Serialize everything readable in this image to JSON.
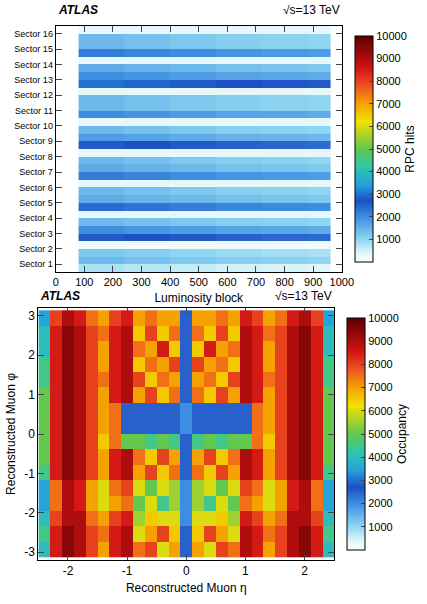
{
  "chart_data": [
    {
      "type": "heatmap",
      "annotations": [
        "ATLAS",
        "√s=13 TeV"
      ],
      "x_label": "Luminosity block",
      "colorbar_label": "RPC hits",
      "grid": false,
      "xlim": [
        0,
        1000
      ],
      "xticks": [
        0,
        100,
        200,
        300,
        400,
        500,
        600,
        700,
        800,
        900,
        1000
      ],
      "ylim": [
        0,
        16
      ],
      "yticks": [
        {
          "value": 0.5,
          "label": "Sector 1"
        },
        {
          "value": 1.5,
          "label": "Sector 2"
        },
        {
          "value": 2.5,
          "label": "Sector 3"
        },
        {
          "value": 3.5,
          "label": "Sector 4"
        },
        {
          "value": 4.5,
          "label": "Sector 5"
        },
        {
          "value": 5.5,
          "label": "Sector 6"
        },
        {
          "value": 6.5,
          "label": "Sector 7"
        },
        {
          "value": 7.5,
          "label": "Sector 8"
        },
        {
          "value": 8.5,
          "label": "Sector 9"
        },
        {
          "value": 9.5,
          "label": "Sector 10"
        },
        {
          "value": 10.5,
          "label": "Sector 11"
        },
        {
          "value": 11.5,
          "label": "Sector 12"
        },
        {
          "value": 12.5,
          "label": "Sector 13"
        },
        {
          "value": 13.5,
          "label": "Sector 14"
        },
        {
          "value": 14.5,
          "label": "Sector 15"
        },
        {
          "value": 15.5,
          "label": "Sector 16"
        }
      ],
      "zlim": [
        0,
        10000
      ],
      "zticks": [
        1000,
        2000,
        3000,
        4000,
        5000,
        6000,
        7000,
        8000,
        9000,
        10000
      ],
      "x_bins": [
        80,
        160,
        240,
        320,
        400,
        480,
        560,
        640,
        720,
        800,
        880,
        960
      ],
      "y_bins": [
        0,
        0.5,
        1,
        1.5,
        2,
        2.5,
        3,
        3.5,
        4,
        4.5,
        5,
        5.5,
        6,
        6.5,
        7,
        7.5,
        8,
        8.5,
        9,
        9.5,
        10,
        10.5,
        11,
        11.5,
        12,
        12.5,
        13,
        13.5,
        14,
        14.5,
        15,
        15.5,
        16
      ],
      "cells": [
        [
          800,
          800,
          700,
          700,
          600,
          600,
          500,
          500,
          450,
          450,
          400
        ],
        [
          1400,
          1400,
          1300,
          1300,
          1200,
          1200,
          1100,
          1100,
          1050,
          1050,
          1000
        ],
        [
          1200,
          1200,
          1100,
          1100,
          1000,
          1000,
          900,
          900,
          850,
          850,
          800
        ],
        [
          200,
          200,
          200,
          200,
          200,
          200,
          200,
          200,
          200,
          200,
          200
        ],
        [
          2800,
          2800,
          2700,
          2700,
          2600,
          2600,
          2500,
          2500,
          2450,
          2450,
          2400
        ],
        [
          2000,
          2000,
          1900,
          1900,
          1800,
          1800,
          1700,
          1700,
          1650,
          1650,
          1600
        ],
        [
          1400,
          1400,
          1300,
          1300,
          1200,
          1200,
          1100,
          1100,
          1050,
          1050,
          1000
        ],
        [
          300,
          300,
          300,
          300,
          300,
          300,
          300,
          300,
          300,
          300,
          300
        ],
        [
          2400,
          2400,
          2300,
          2300,
          2200,
          2200,
          2100,
          2100,
          2050,
          2050,
          2000
        ],
        [
          1600,
          1600,
          1500,
          1500,
          1400,
          1400,
          1300,
          1300,
          1250,
          1250,
          1200
        ],
        [
          1400,
          1400,
          1300,
          1300,
          1200,
          1200,
          1100,
          1100,
          1050,
          1050,
          1000
        ],
        [
          300,
          300,
          300,
          300,
          300,
          300,
          300,
          300,
          300,
          300,
          300
        ],
        [
          2200,
          2200,
          2100,
          2100,
          2000,
          2000,
          1900,
          1900,
          1850,
          1850,
          1800
        ],
        [
          1600,
          1600,
          1500,
          1500,
          1400,
          1400,
          1300,
          1300,
          1250,
          1250,
          1200
        ],
        [
          1400,
          1400,
          1300,
          1300,
          1200,
          1200,
          1100,
          1100,
          1050,
          1050,
          1000
        ],
        [
          300,
          300,
          300,
          300,
          300,
          300,
          300,
          300,
          300,
          300,
          300
        ],
        [
          2800,
          2800,
          2700,
          2700,
          2600,
          2600,
          2500,
          2500,
          2450,
          2450,
          2400
        ],
        [
          1800,
          1800,
          1700,
          1700,
          1600,
          1600,
          1500,
          1500,
          1450,
          1450,
          1400
        ],
        [
          1400,
          1400,
          1300,
          1300,
          1200,
          1200,
          1100,
          1100,
          1050,
          1050,
          1000
        ],
        [
          300,
          300,
          300,
          300,
          300,
          300,
          300,
          300,
          300,
          300,
          300
        ],
        [
          2000,
          2000,
          1900,
          1900,
          1800,
          1800,
          1700,
          1700,
          1650,
          1650,
          1600
        ],
        [
          1400,
          1400,
          1300,
          1300,
          1200,
          1200,
          1100,
          1100,
          1050,
          1050,
          1000
        ],
        [
          1400,
          1400,
          1300,
          1300,
          1200,
          1200,
          1100,
          1100,
          1050,
          1050,
          1000
        ],
        [
          300,
          300,
          300,
          300,
          300,
          300,
          300,
          300,
          300,
          300,
          300
        ],
        [
          3000,
          3000,
          2900,
          2900,
          2800,
          2800,
          2700,
          2700,
          2650,
          2650,
          2600
        ],
        [
          2000,
          2000,
          1900,
          1900,
          1800,
          1800,
          1700,
          1700,
          1650,
          1650,
          1600
        ],
        [
          1600,
          1600,
          1500,
          1500,
          1400,
          1400,
          1300,
          1300,
          1250,
          1250,
          1200
        ],
        [
          300,
          300,
          300,
          300,
          300,
          300,
          300,
          300,
          300,
          300,
          300
        ],
        [
          2200,
          2200,
          2100,
          2100,
          2000,
          2000,
          1900,
          1900,
          1850,
          1850,
          1800
        ],
        [
          1400,
          1400,
          1300,
          1300,
          1200,
          1200,
          1100,
          1100,
          1050,
          1050,
          1000
        ],
        [
          1400,
          1400,
          1300,
          1300,
          1200,
          1200,
          1100,
          1100,
          1050,
          1050,
          1000
        ],
        [
          300,
          300,
          300,
          300,
          300,
          300,
          300,
          300,
          300,
          300,
          300
        ]
      ]
    },
    {
      "type": "heatmap",
      "annotations": [
        "ATLAS",
        "√s=13 TeV"
      ],
      "x_label": "Reconstructed Muon η",
      "y_label": "Reconstructed Muon φ",
      "colorbar_label": "Occupancy",
      "grid": false,
      "xlim": [
        -2.5,
        2.5
      ],
      "xticks": [
        -2,
        -1,
        0,
        1,
        2
      ],
      "ylim": [
        -3.2,
        3.2
      ],
      "yticks": [
        -3,
        -2,
        -1,
        0,
        1,
        2,
        3
      ],
      "zlim": [
        0,
        10000
      ],
      "zticks": [
        1000,
        2000,
        3000,
        4000,
        5000,
        6000,
        7000,
        8000,
        9000,
        10000
      ],
      "x_bins": [
        -2.5,
        -2.3,
        -2.1,
        -1.9,
        -1.7,
        -1.5,
        -1.3,
        -1.1,
        -0.9,
        -0.7,
        -0.5,
        -0.3,
        -0.1,
        0.1,
        0.3,
        0.5,
        0.7,
        0.9,
        1.1,
        1.3,
        1.5,
        1.7,
        1.9,
        2.1,
        2.3,
        2.5
      ],
      "y_bins": [
        -3.1416,
        -2.7489,
        -2.3562,
        -1.9635,
        -1.5708,
        -1.1781,
        -0.7854,
        -0.3927,
        0,
        0.3927,
        0.7854,
        1.1781,
        1.5708,
        1.9635,
        2.3562,
        2.7489,
        3.1416
      ],
      "cells": [
        [
          4000,
          8500,
          9500,
          9000,
          8000,
          7000,
          8500,
          9000,
          7500,
          8000,
          6000,
          7000,
          2500,
          7000,
          6000,
          8000,
          7500,
          9000,
          8500,
          7000,
          8000,
          9000,
          9500,
          8500,
          4000
        ],
        [
          4500,
          8500,
          9500,
          9000,
          8000,
          7500,
          8500,
          9000,
          6000,
          7000,
          8000,
          6500,
          2500,
          6500,
          8000,
          7000,
          6000,
          9000,
          8500,
          7500,
          8000,
          9000,
          9500,
          8500,
          4500
        ],
        [
          4000,
          8000,
          9000,
          9000,
          7500,
          7000,
          8000,
          8500,
          5500,
          6500,
          6000,
          6000,
          2000,
          6000,
          6000,
          6500,
          5500,
          8500,
          8000,
          7000,
          7500,
          9000,
          9000,
          8000,
          4000
        ],
        [
          3500,
          7500,
          9000,
          8500,
          7000,
          6000,
          7000,
          7500,
          5000,
          6000,
          4500,
          5500,
          2000,
          5500,
          4500,
          6000,
          5000,
          7500,
          7000,
          6000,
          7000,
          8500,
          9000,
          7500,
          3500
        ],
        [
          3500,
          7500,
          9000,
          8500,
          7000,
          6000,
          7500,
          8000,
          6000,
          5000,
          6000,
          5500,
          2000,
          5500,
          6000,
          5000,
          6000,
          8000,
          7500,
          6000,
          7000,
          8500,
          9000,
          7500,
          3500
        ],
        [
          4500,
          8500,
          9500,
          9000,
          8000,
          7000,
          8500,
          9000,
          7000,
          8000,
          6500,
          7500,
          2500,
          7500,
          6500,
          8000,
          7000,
          9000,
          8500,
          7000,
          8000,
          9000,
          9500,
          8500,
          4500
        ],
        [
          5000,
          8500,
          9500,
          9000,
          8000,
          7000,
          8500,
          9000,
          7500,
          6500,
          8000,
          7000,
          2500,
          7000,
          8000,
          6500,
          7500,
          9000,
          8500,
          7000,
          8000,
          9000,
          9500,
          8500,
          5000
        ],
        [
          5000,
          8500,
          9500,
          9000,
          8000,
          6500,
          7500,
          5000,
          5000,
          4500,
          5000,
          4500,
          2500,
          4500,
          5000,
          4500,
          5000,
          5000,
          7500,
          6500,
          8000,
          9000,
          9500,
          8500,
          5000
        ],
        [
          5000,
          8500,
          9500,
          9000,
          8000,
          7000,
          7500,
          2500,
          2500,
          2500,
          2500,
          2500,
          2000,
          2500,
          2500,
          2500,
          2500,
          2500,
          7500,
          7000,
          8000,
          9000,
          9500,
          8500,
          5000
        ],
        [
          5000,
          8500,
          9500,
          9000,
          8000,
          7000,
          7500,
          2500,
          2500,
          2500,
          2500,
          2500,
          2000,
          2500,
          2500,
          2500,
          2500,
          2500,
          7500,
          7000,
          8000,
          9000,
          9500,
          8500,
          5000
        ],
        [
          5000,
          8500,
          9500,
          9000,
          8000,
          7000,
          8500,
          9000,
          7000,
          8000,
          6500,
          7500,
          2500,
          7500,
          6500,
          8000,
          7000,
          9000,
          8500,
          7000,
          8000,
          9000,
          9500,
          8500,
          5000
        ],
        [
          4500,
          8500,
          9500,
          9000,
          8000,
          7500,
          8500,
          9000,
          8000,
          6500,
          7500,
          7000,
          2500,
          7000,
          7500,
          6500,
          8000,
          9000,
          8500,
          7500,
          8000,
          9000,
          9500,
          8500,
          4500
        ],
        [
          4500,
          8500,
          9500,
          9000,
          8000,
          7000,
          8500,
          9000,
          6500,
          7500,
          7000,
          8000,
          2500,
          8000,
          7000,
          7500,
          6500,
          9000,
          8500,
          7000,
          8000,
          9000,
          9500,
          8500,
          4500
        ],
        [
          4000,
          8500,
          9500,
          9000,
          8000,
          7000,
          8500,
          9000,
          7500,
          7000,
          8500,
          6500,
          2500,
          6500,
          8500,
          7000,
          7500,
          9000,
          8500,
          7000,
          8000,
          9000,
          9500,
          8500,
          4000
        ],
        [
          4000,
          8500,
          9500,
          9000,
          8000,
          7500,
          8500,
          9000,
          6500,
          8000,
          6500,
          7500,
          2500,
          7500,
          6500,
          8000,
          6500,
          9000,
          8500,
          7500,
          8000,
          9000,
          9500,
          8500,
          4000
        ],
        [
          3500,
          8000,
          9000,
          8500,
          7500,
          7000,
          8000,
          8500,
          7000,
          7500,
          7000,
          7000,
          2500,
          7000,
          7000,
          7500,
          7000,
          8500,
          8000,
          7000,
          7500,
          8500,
          9000,
          8000,
          3500
        ]
      ]
    }
  ]
}
